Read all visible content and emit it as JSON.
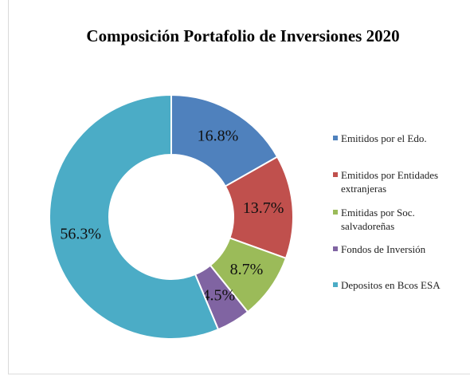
{
  "chart_data": {
    "type": "donut",
    "title": "Composición Portafolio de Inversiones 2020",
    "categories": [
      "Emitidos por el Edo.",
      "Emitidos por Entidades extranjeras",
      "Emitidas por Soc. salvadoreñas",
      "Fondos de Inversión",
      "Depositos en Bcos ESA"
    ],
    "values": [
      16.8,
      13.7,
      8.7,
      4.5,
      56.3
    ],
    "value_labels": [
      "16.8%",
      "13.7%",
      "8.7%",
      "4.5%",
      "56.3%"
    ],
    "colors": [
      "#4f81bd",
      "#c0504d",
      "#9bbb59",
      "#8064a2",
      "#4bacc6"
    ],
    "legend": "right"
  }
}
